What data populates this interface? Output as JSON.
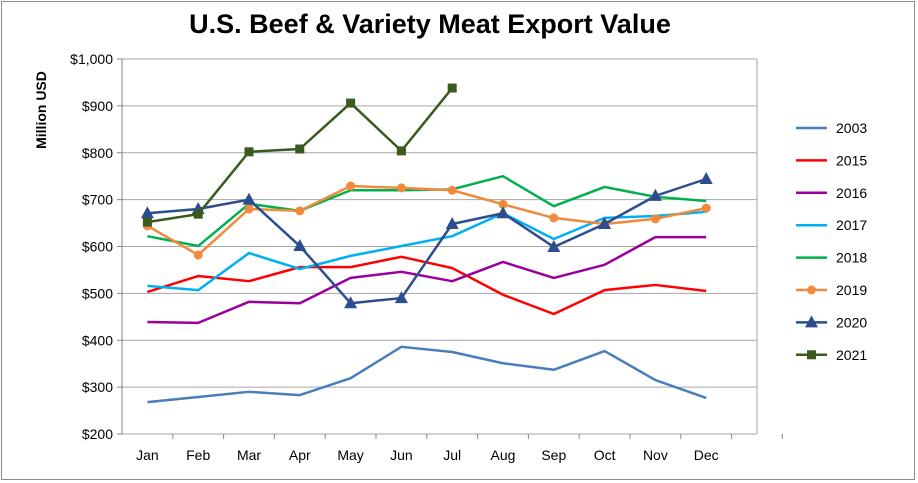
{
  "chart_data": {
    "type": "line",
    "title": "U.S. Beef & Variety Meat Export Value",
    "xlabel": "",
    "ylabel": "Million USD",
    "ylim": [
      200,
      1000
    ],
    "yticks": [
      "$200",
      "$300",
      "$400",
      "$500",
      "$600",
      "$700",
      "$800",
      "$900",
      "$1,000"
    ],
    "categories": [
      "Jan",
      "Feb",
      "Mar",
      "Apr",
      "May",
      "Jun",
      "Jul",
      "Aug",
      "Sep",
      "Oct",
      "Nov",
      "Dec"
    ],
    "grid": "horizontal",
    "legend": "right",
    "series": [
      {
        "name": "2003",
        "color": "#4a7ebb",
        "marker": "none",
        "values": [
          268,
          279,
          290,
          283,
          319,
          386,
          375,
          351,
          337,
          377,
          315,
          277
        ]
      },
      {
        "name": "2015",
        "color": "#ff0000",
        "marker": "none",
        "values": [
          503,
          537,
          526,
          556,
          556,
          578,
          554,
          497,
          456,
          507,
          518,
          505
        ]
      },
      {
        "name": "2016",
        "color": "#9b009b",
        "marker": "none",
        "values": [
          439,
          437,
          482,
          479,
          533,
          546,
          526,
          567,
          533,
          561,
          620,
          620
        ]
      },
      {
        "name": "2017",
        "color": "#00b0f0",
        "marker": "none",
        "values": [
          516,
          507,
          586,
          552,
          580,
          601,
          622,
          671,
          616,
          661,
          665,
          674
        ]
      },
      {
        "name": "2018",
        "color": "#00b050",
        "marker": "none",
        "values": [
          622,
          601,
          691,
          676,
          720,
          720,
          722,
          750,
          686,
          727,
          706,
          697
        ]
      },
      {
        "name": "2019",
        "color": "#f08a3c",
        "marker": "circle",
        "values": [
          644,
          582,
          680,
          676,
          729,
          725,
          720,
          690,
          661,
          648,
          659,
          682
        ]
      },
      {
        "name": "2020",
        "color": "#2c4d8e",
        "marker": "triangle",
        "values": [
          671,
          680,
          700,
          601,
          479,
          490,
          648,
          671,
          599,
          648,
          708,
          744
        ]
      },
      {
        "name": "2021",
        "color": "#3a5a1e",
        "marker": "square",
        "values": [
          652,
          669,
          802,
          808,
          906,
          804,
          938,
          null,
          null,
          null,
          null,
          null
        ]
      }
    ]
  }
}
